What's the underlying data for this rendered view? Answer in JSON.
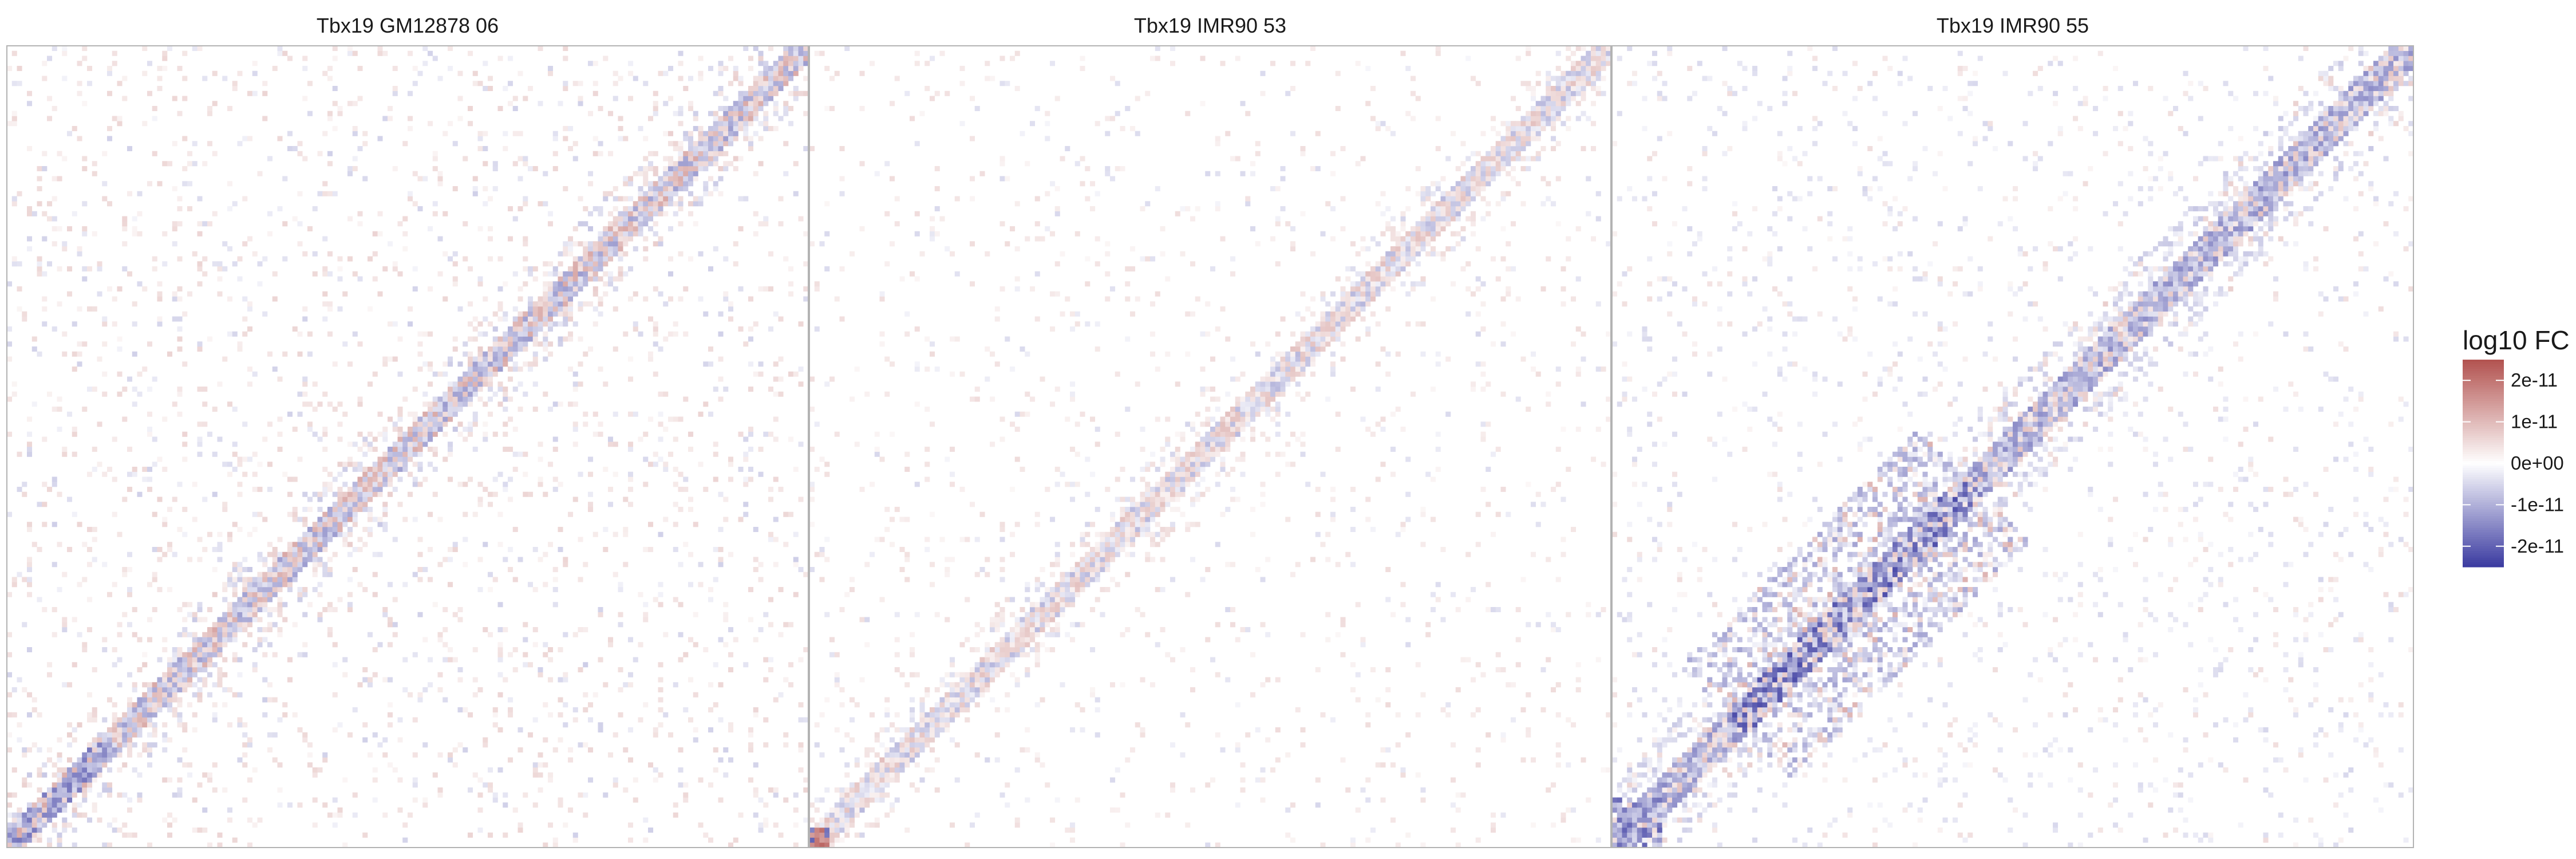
{
  "chart_data": {
    "type": "heatmap",
    "facets": [
      {
        "title": "Tbx19 GM12878 06",
        "pattern": "mixed_diagonal"
      },
      {
        "title": "Tbx19 IMR90 53",
        "pattern": "red_diagonal_corner"
      },
      {
        "title": "Tbx19 IMR90 55",
        "pattern": "blue_diagonal_strong"
      }
    ],
    "grid_size": 160,
    "xlabel": "",
    "ylabel": "",
    "legend": {
      "title": "log10 FC",
      "position": "right",
      "ticks": [
        {
          "value": 2e-11,
          "label": "2e-11"
        },
        {
          "value": 1e-11,
          "label": "1e-11"
        },
        {
          "value": 0,
          "label": "0e+00"
        },
        {
          "value": -1e-11,
          "label": "-1e-11"
        },
        {
          "value": -2e-11,
          "label": "-2e-11"
        }
      ],
      "range": [
        -2.5e-11,
        2.5e-11
      ]
    },
    "colors": {
      "high": "#b2524f",
      "mid": "#ffffff",
      "low": "#3a3aa0",
      "panel_border": "#b3b3b3"
    }
  }
}
